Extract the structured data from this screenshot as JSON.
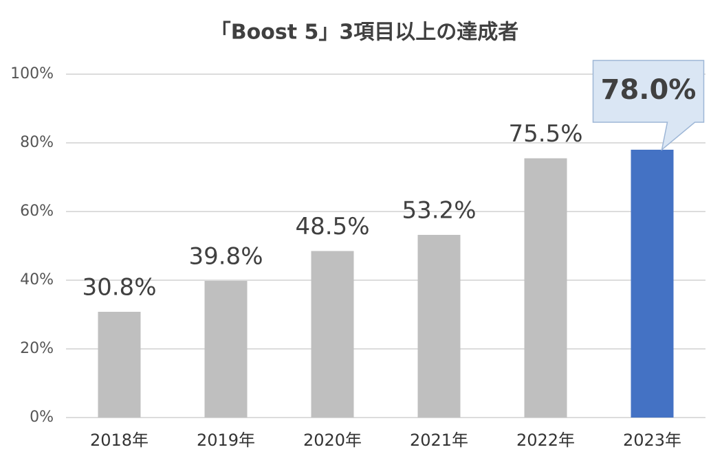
{
  "chart_data": {
    "type": "bar",
    "title": "「Boost 5」3項目以上の達成者",
    "categories": [
      "2018年",
      "2019年",
      "2020年",
      "2021年",
      "2022年",
      "2023年"
    ],
    "values": [
      30.8,
      39.8,
      48.5,
      53.2,
      75.5,
      78.0
    ],
    "value_labels": [
      "30.8%",
      "39.8%",
      "48.5%",
      "53.2%",
      "75.5%",
      "78.0%"
    ],
    "colors": [
      "#bfbfbf",
      "#bfbfbf",
      "#bfbfbf",
      "#bfbfbf",
      "#bfbfbf",
      "#4472c4"
    ],
    "ylim": [
      0,
      100
    ],
    "yticks": [
      {
        "value": 0,
        "label": "0%"
      },
      {
        "value": 20,
        "label": "20%"
      },
      {
        "value": 40,
        "label": "40%"
      },
      {
        "value": 60,
        "label": "60%"
      },
      {
        "value": 80,
        "label": "80%"
      },
      {
        "value": 100,
        "label": "100%"
      }
    ],
    "grid": true
  }
}
